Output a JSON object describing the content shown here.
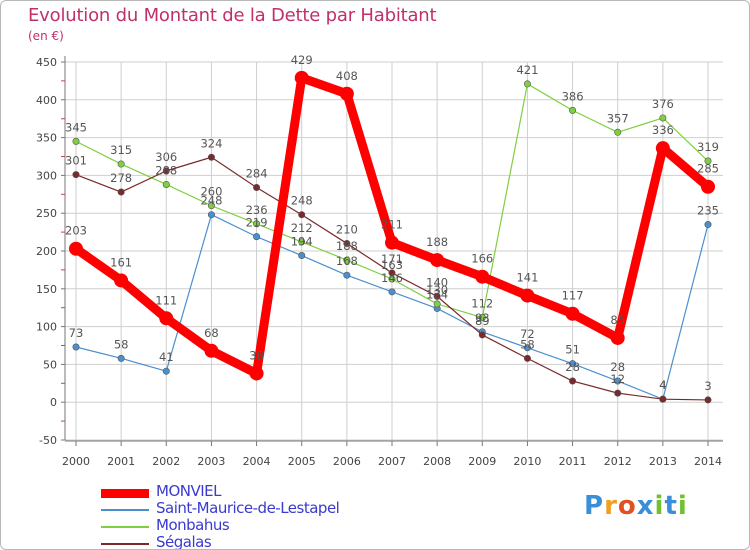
{
  "chart_data": {
    "type": "line",
    "title": "Evolution du Montant de la Dette par Habitant",
    "unit_label": "(en €)",
    "x": [
      "2000",
      "2001",
      "2002",
      "2003",
      "2004",
      "2005",
      "2006",
      "2007",
      "2008",
      "2009",
      "2010",
      "2011",
      "2012",
      "2013",
      "2014"
    ],
    "ylim": [
      -50,
      450
    ],
    "yticks": [
      -50,
      0,
      50,
      100,
      150,
      200,
      250,
      300,
      350,
      400,
      450
    ],
    "grid": true,
    "legend_position": "bottom-left",
    "series": [
      {
        "name": "MONVIEL",
        "color": "#ff0000",
        "emphasis": true,
        "values": [
          203,
          161,
          111,
          68,
          38,
          429,
          408,
          211,
          188,
          166,
          141,
          117,
          85,
          336,
          285
        ],
        "labels": [
          "203",
          "161",
          "111",
          "68",
          "38",
          "429",
          "408",
          "211",
          "188",
          "166",
          "141",
          "117",
          "85",
          "336",
          "285"
        ]
      },
      {
        "name": "Saint-Maurice-de-Lestapel",
        "color": "#4a90d0",
        "values": [
          73,
          58,
          41,
          248,
          219,
          194,
          168,
          146,
          124,
          93,
          72,
          51,
          28,
          4,
          235
        ],
        "labels": [
          "73",
          "58",
          "41",
          "248",
          "219",
          "194",
          "168",
          "146",
          "124",
          "93",
          "72",
          "51",
          "28",
          "4",
          "235"
        ]
      },
      {
        "name": "Monbahus",
        "color": "#7fd040",
        "values": [
          345,
          315,
          288,
          260,
          236,
          212,
          188,
          163,
          130,
          112,
          421,
          386,
          357,
          376,
          319
        ],
        "labels": [
          "345",
          "315",
          "288",
          "260",
          "236",
          "212",
          "188",
          "163",
          "130",
          "112",
          "421",
          "386",
          "357",
          "376",
          "319"
        ]
      },
      {
        "name": "Ségalas",
        "color": "#7a2a2a",
        "values": [
          301,
          278,
          306,
          324,
          284,
          248,
          210,
          171,
          140,
          89,
          58,
          28,
          12,
          4,
          3
        ],
        "labels": [
          "301",
          "278",
          "306",
          "324",
          "284",
          "248",
          "210",
          "171",
          "140",
          "89",
          "58",
          "28",
          "12",
          "4",
          "3"
        ]
      }
    ]
  },
  "logo": {
    "letters": [
      "P",
      "r",
      "o",
      "x",
      "i",
      "t",
      "i"
    ],
    "colors": [
      "#3a8fd8",
      "#f0a020",
      "#e05020",
      "#3a8fd8",
      "#70c030",
      "#3a8fd8",
      "#70c030"
    ]
  }
}
